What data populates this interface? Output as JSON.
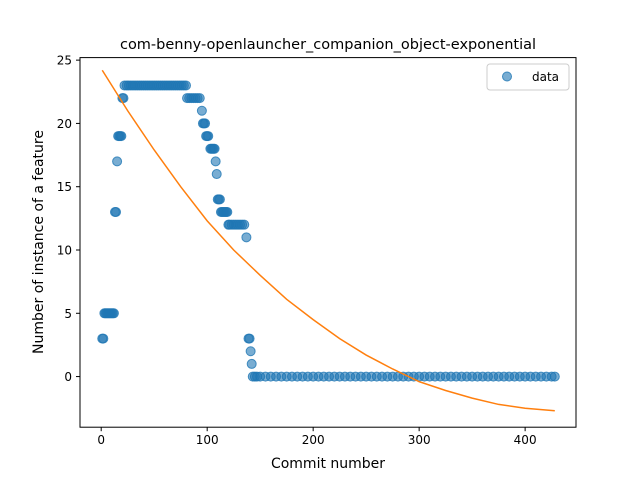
{
  "chart_data": {
    "type": "scatter",
    "title": "com-benny-openlauncher_companion_object-exponential",
    "xlabel": "Commit number",
    "ylabel": "Number of instance of a feature",
    "xlim": [
      -20,
      448
    ],
    "ylim": [
      -4.0,
      25.2
    ],
    "xticks": [
      0,
      100,
      200,
      300,
      400
    ],
    "yticks": [
      0,
      5,
      10,
      15,
      20,
      25
    ],
    "grid": false,
    "legend_position": "top-right",
    "series": [
      {
        "name": "data",
        "kind": "scatter",
        "color": "#1f77b4",
        "points": [
          [
            1,
            3
          ],
          [
            2,
            3
          ],
          [
            3,
            5
          ],
          [
            4,
            5
          ],
          [
            5,
            5
          ],
          [
            6,
            5
          ],
          [
            7,
            5
          ],
          [
            8,
            5
          ],
          [
            9,
            5
          ],
          [
            10,
            5
          ],
          [
            11,
            5
          ],
          [
            12,
            5
          ],
          [
            13,
            13
          ],
          [
            14,
            13
          ],
          [
            15,
            17
          ],
          [
            16,
            19
          ],
          [
            17,
            19
          ],
          [
            18,
            19
          ],
          [
            19,
            19
          ],
          [
            20,
            22
          ],
          [
            21,
            22
          ],
          [
            22,
            23
          ],
          [
            24,
            23
          ],
          [
            26,
            23
          ],
          [
            28,
            23
          ],
          [
            30,
            23
          ],
          [
            32,
            23
          ],
          [
            34,
            23
          ],
          [
            36,
            23
          ],
          [
            38,
            23
          ],
          [
            40,
            23
          ],
          [
            42,
            23
          ],
          [
            44,
            23
          ],
          [
            46,
            23
          ],
          [
            48,
            23
          ],
          [
            50,
            23
          ],
          [
            52,
            23
          ],
          [
            54,
            23
          ],
          [
            56,
            23
          ],
          [
            58,
            23
          ],
          [
            60,
            23
          ],
          [
            62,
            23
          ],
          [
            64,
            23
          ],
          [
            66,
            23
          ],
          [
            68,
            23
          ],
          [
            70,
            23
          ],
          [
            72,
            23
          ],
          [
            74,
            23
          ],
          [
            76,
            23
          ],
          [
            78,
            23
          ],
          [
            80,
            23
          ],
          [
            81,
            22
          ],
          [
            83,
            22
          ],
          [
            85,
            22
          ],
          [
            87,
            22
          ],
          [
            89,
            22
          ],
          [
            91,
            22
          ],
          [
            93,
            22
          ],
          [
            95,
            21
          ],
          [
            96,
            20
          ],
          [
            97,
            20
          ],
          [
            98,
            20
          ],
          [
            99,
            19
          ],
          [
            100,
            19
          ],
          [
            101,
            19
          ],
          [
            103,
            18
          ],
          [
            104,
            18
          ],
          [
            105,
            18
          ],
          [
            106,
            18
          ],
          [
            107,
            18
          ],
          [
            108,
            17
          ],
          [
            109,
            16
          ],
          [
            110,
            14
          ],
          [
            111,
            14
          ],
          [
            112,
            14
          ],
          [
            113,
            13
          ],
          [
            114,
            13
          ],
          [
            115,
            13
          ],
          [
            116,
            13
          ],
          [
            117,
            13
          ],
          [
            118,
            13
          ],
          [
            119,
            13
          ],
          [
            120,
            12
          ],
          [
            121,
            12
          ],
          [
            123,
            12
          ],
          [
            125,
            12
          ],
          [
            127,
            12
          ],
          [
            129,
            12
          ],
          [
            131,
            12
          ],
          [
            133,
            12
          ],
          [
            135,
            12
          ],
          [
            137,
            11
          ],
          [
            139,
            3
          ],
          [
            140,
            3
          ],
          [
            141,
            2
          ],
          [
            142,
            1
          ],
          [
            143,
            0
          ],
          [
            145,
            0
          ],
          [
            147,
            0
          ],
          [
            150,
            0
          ],
          [
            155,
            0
          ],
          [
            160,
            0
          ],
          [
            165,
            0
          ],
          [
            170,
            0
          ],
          [
            175,
            0
          ],
          [
            180,
            0
          ],
          [
            185,
            0
          ],
          [
            190,
            0
          ],
          [
            195,
            0
          ],
          [
            200,
            0
          ],
          [
            205,
            0
          ],
          [
            210,
            0
          ],
          [
            215,
            0
          ],
          [
            220,
            0
          ],
          [
            225,
            0
          ],
          [
            230,
            0
          ],
          [
            235,
            0
          ],
          [
            240,
            0
          ],
          [
            245,
            0
          ],
          [
            250,
            0
          ],
          [
            255,
            0
          ],
          [
            260,
            0
          ],
          [
            265,
            0
          ],
          [
            270,
            0
          ],
          [
            275,
            0
          ],
          [
            280,
            0
          ],
          [
            285,
            0
          ],
          [
            290,
            0
          ],
          [
            295,
            0
          ],
          [
            300,
            0
          ],
          [
            305,
            0
          ],
          [
            310,
            0
          ],
          [
            315,
            0
          ],
          [
            320,
            0
          ],
          [
            325,
            0
          ],
          [
            330,
            0
          ],
          [
            335,
            0
          ],
          [
            340,
            0
          ],
          [
            345,
            0
          ],
          [
            350,
            0
          ],
          [
            355,
            0
          ],
          [
            360,
            0
          ],
          [
            365,
            0
          ],
          [
            370,
            0
          ],
          [
            375,
            0
          ],
          [
            380,
            0
          ],
          [
            385,
            0
          ],
          [
            390,
            0
          ],
          [
            395,
            0
          ],
          [
            400,
            0
          ],
          [
            405,
            0
          ],
          [
            410,
            0
          ],
          [
            415,
            0
          ],
          [
            420,
            0
          ],
          [
            425,
            0
          ],
          [
            428,
            0
          ]
        ]
      },
      {
        "kind": "line",
        "color": "#ff7f0e",
        "points": [
          [
            1,
            24.2
          ],
          [
            25,
            21.0
          ],
          [
            50,
            17.9
          ],
          [
            75,
            15.0
          ],
          [
            100,
            12.3
          ],
          [
            125,
            10.0
          ],
          [
            150,
            8.0
          ],
          [
            175,
            6.1
          ],
          [
            200,
            4.5
          ],
          [
            225,
            3.0
          ],
          [
            250,
            1.7
          ],
          [
            275,
            0.6
          ],
          [
            300,
            -0.4
          ],
          [
            325,
            -1.1
          ],
          [
            350,
            -1.7
          ],
          [
            375,
            -2.2
          ],
          [
            400,
            -2.5
          ],
          [
            428,
            -2.7
          ]
        ]
      }
    ]
  }
}
